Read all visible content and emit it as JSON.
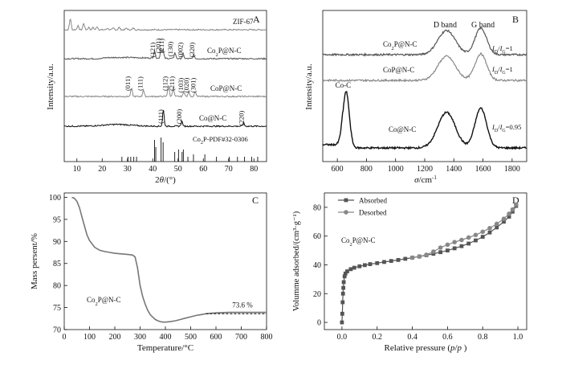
{
  "chart_data": [
    {
      "panel": "A",
      "type": "line",
      "xlabel": "2θ/(°)",
      "ylabel": "Intensity/a.u.",
      "xlim": [
        5,
        85
      ],
      "xticks": [
        10,
        20,
        30,
        40,
        50,
        60,
        70,
        80
      ],
      "series": [
        {
          "name": "ZIF-67",
          "color": "#888888",
          "peaks": [
            [
              7.4,
              14
            ],
            [
              10.4,
              5
            ],
            [
              12.7,
              8
            ],
            [
              14.7,
              3
            ],
            [
              16.4,
              3
            ],
            [
              18.0,
              4
            ],
            [
              22.1,
              2
            ],
            [
              24.5,
              2
            ],
            [
              26.7,
              3
            ],
            [
              29.6,
              2
            ],
            [
              32.4,
              2
            ]
          ]
        },
        {
          "name": "Co2P@N-C",
          "color": "#555555",
          "peaks": [
            [
              40.7,
              9
            ],
            [
              43.3,
              11
            ],
            [
              44.1,
              9
            ],
            [
              48.8,
              7
            ],
            [
              52.0,
              6
            ],
            [
              56.2,
              5
            ]
          ],
          "labels": [
            "(121)",
            "(201)",
            "(211)",
            "(130)",
            "(002)",
            "(320)"
          ]
        },
        {
          "name": "CoP@N-C",
          "color": "#888888",
          "peaks": [
            [
              31.6,
              10
            ],
            [
              36.3,
              8
            ],
            [
              46.2,
              14
            ],
            [
              48.1,
              11
            ],
            [
              52.3,
              6
            ],
            [
              54.3,
              6
            ],
            [
              56.8,
              6
            ]
          ],
          "labels": [
            "(011)",
            "(111)",
            "(112)",
            "(211)",
            "(103)",
            "(020)",
            "(301)"
          ]
        },
        {
          "name": "Co@N-C",
          "color": "#111111",
          "peaks": [
            [
              44.2,
              20
            ],
            [
              51.5,
              6
            ],
            [
              75.9,
              4
            ]
          ],
          "labels": [
            "(111)",
            "(200)",
            "(220)"
          ]
        }
      ],
      "reference": {
        "name": "Co2P-PDF#32-0306",
        "sticks": [
          [
            27.8,
            0.2
          ],
          [
            30.2,
            0.2
          ],
          [
            31.3,
            0.2
          ],
          [
            32.5,
            0.2
          ],
          [
            33.6,
            0.2
          ],
          [
            40.7,
            0.9
          ],
          [
            41.2,
            0.6
          ],
          [
            43.3,
            1.0
          ],
          [
            44.1,
            0.8
          ],
          [
            48.7,
            0.4
          ],
          [
            50.2,
            0.5
          ],
          [
            51.6,
            0.4
          ],
          [
            52.1,
            0.5
          ],
          [
            53.9,
            0.2
          ],
          [
            56.1,
            0.3
          ],
          [
            60.6,
            0.3
          ],
          [
            65.2,
            0.2
          ],
          [
            70.3,
            0.2
          ],
          [
            73.5,
            0.2
          ],
          [
            76.3,
            0.2
          ],
          [
            79.1,
            0.2
          ],
          [
            81.5,
            0.2
          ]
        ]
      }
    },
    {
      "panel": "B",
      "type": "line",
      "xlabel": "σ/cm⁻¹",
      "ylabel": "Intensity/a.u.",
      "xlim": [
        500,
        1900
      ],
      "xticks": [
        600,
        800,
        1000,
        1200,
        1400,
        1600,
        1800
      ],
      "annotations": [
        "D band",
        "G band",
        "Co-C"
      ],
      "series": [
        {
          "name": "Co2P@N-C",
          "ratio": "=1",
          "color": "#555555",
          "bands": [
            [
              1350,
              60,
              1.0
            ],
            [
              1585,
              40,
              1.1
            ]
          ]
        },
        {
          "name": "CoP@N-C",
          "ratio": "=1",
          "color": "#888888",
          "bands": [
            [
              1350,
              60,
              1.0
            ],
            [
              1585,
              40,
              1.1
            ]
          ]
        },
        {
          "name": "Co@N-C",
          "ratio": "=0.95",
          "color": "#111111",
          "bands": [
            [
              660,
              22,
              1.35
            ],
            [
              1350,
              60,
              0.85
            ],
            [
              1585,
              40,
              0.95
            ]
          ]
        }
      ]
    },
    {
      "panel": "C",
      "type": "line",
      "xlabel": "Temperature/°C",
      "ylabel": "Mass  persent/%",
      "xlim": [
        0,
        800
      ],
      "ylim": [
        70,
        101
      ],
      "xticks": [
        0,
        100,
        200,
        300,
        400,
        500,
        600,
        700,
        800
      ],
      "yticks": [
        70,
        75,
        80,
        85,
        90,
        95,
        100
      ],
      "annotation": "73.6 %",
      "sample_label": "Co2P@N-C",
      "series": [
        {
          "name": "Co2P@N-C",
          "color": "#777777",
          "x": [
            30,
            40,
            50,
            60,
            70,
            80,
            90,
            100,
            120,
            140,
            160,
            180,
            200,
            220,
            240,
            260,
            270,
            280,
            290,
            300,
            310,
            320,
            330,
            340,
            350,
            360,
            370,
            380,
            390,
            400,
            420,
            440,
            460,
            480,
            500,
            520,
            540,
            560,
            580,
            600,
            650,
            700,
            750,
            800
          ],
          "y": [
            100,
            99.8,
            99.1,
            97.7,
            95.6,
            93.5,
            91.5,
            90.2,
            88.7,
            88.0,
            87.7,
            87.5,
            87.3,
            87.2,
            87.1,
            87.0,
            86.9,
            86.5,
            84.0,
            80.0,
            77.5,
            75.8,
            74.4,
            73.4,
            72.8,
            72.3,
            72.0,
            71.8,
            71.7,
            71.7,
            71.8,
            72.0,
            72.3,
            72.6,
            72.9,
            73.2,
            73.4,
            73.6,
            73.7,
            73.8,
            73.9,
            73.9,
            73.9,
            73.9
          ]
        }
      ],
      "dashed_level": 73.6,
      "dashed_range": [
        560,
        800
      ]
    },
    {
      "panel": "D",
      "type": "line",
      "xlabel": "Relative pressure (p/p )",
      "ylabel": "Volumme adsorbed/(cm³·g⁻¹)",
      "xlim": [
        -0.1,
        1.05
      ],
      "ylim": [
        -5,
        90
      ],
      "xticks": [
        0.0,
        0.2,
        0.4,
        0.6,
        0.8,
        1.0
      ],
      "xtick_labels": [
        "0.0",
        "0.2",
        "0.4",
        "0.6",
        "0.8",
        "1.0"
      ],
      "yticks": [
        0,
        20,
        40,
        60,
        80
      ],
      "sample_label": "Co2P@N-C",
      "legend_position": "top-left",
      "series": [
        {
          "name": "Absorbed",
          "marker": "square",
          "color": "#555555",
          "x": [
            0.0,
            0.002,
            0.004,
            0.006,
            0.008,
            0.01,
            0.015,
            0.02,
            0.03,
            0.05,
            0.07,
            0.1,
            0.13,
            0.16,
            0.2,
            0.24,
            0.28,
            0.32,
            0.36,
            0.4,
            0.44,
            0.48,
            0.52,
            0.56,
            0.6,
            0.64,
            0.68,
            0.72,
            0.76,
            0.8,
            0.84,
            0.88,
            0.92,
            0.95,
            0.97,
            0.99
          ],
          "y": [
            0,
            6,
            14,
            20,
            24,
            28,
            32,
            34,
            35.5,
            37,
            38,
            39,
            39.8,
            40.5,
            41.2,
            42,
            42.7,
            43.4,
            44.2,
            45,
            45.8,
            46.7,
            47.7,
            48.8,
            50,
            51.5,
            53,
            54.8,
            57,
            59.5,
            62.5,
            66,
            70,
            73.5,
            77,
            81
          ]
        },
        {
          "name": "Desorbed",
          "marker": "circle",
          "color": "#888888",
          "x": [
            0.99,
            0.97,
            0.95,
            0.92,
            0.88,
            0.84,
            0.8,
            0.76,
            0.72,
            0.68,
            0.64,
            0.6,
            0.56,
            0.52,
            0.48,
            0.44,
            0.4
          ],
          "y": [
            82,
            78.5,
            75.5,
            72,
            68.5,
            65.5,
            63,
            60.8,
            59,
            57.3,
            55.8,
            54,
            52,
            49.2,
            47,
            45.8,
            45
          ]
        }
      ]
    }
  ]
}
